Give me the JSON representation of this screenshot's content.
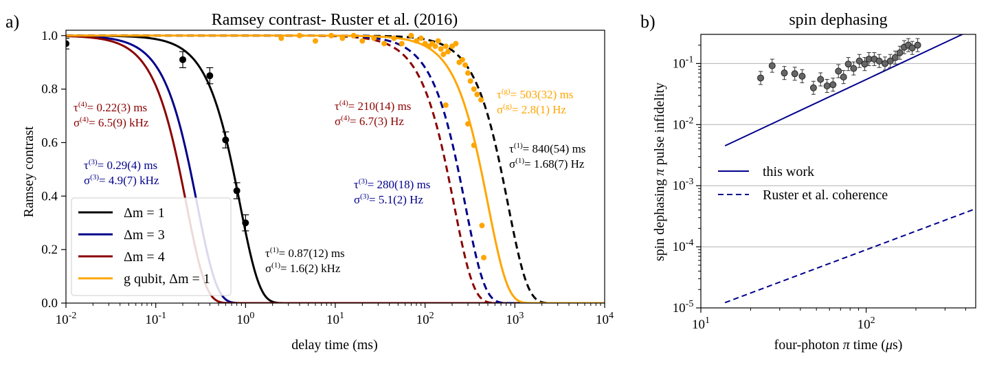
{
  "chart_data": [
    {
      "panel_label": "a)",
      "type": "line",
      "title": "Ramsey contrast- Ruster et al. (2016)",
      "xlabel": "delay time (ms)",
      "ylabel": "Ramsey contrast",
      "xscale": "log",
      "xlim": [
        0.01,
        10000
      ],
      "ylim": [
        0,
        1.02
      ],
      "xticks": [
        0.01,
        0.1,
        1,
        10,
        100,
        1000,
        10000
      ],
      "xtick_labels": [
        {
          "base": "10",
          "exp": "-2"
        },
        {
          "base": "10",
          "exp": "-1"
        },
        {
          "base": "10",
          "exp": "0"
        },
        {
          "base": "10",
          "exp": "1"
        },
        {
          "base": "10",
          "exp": "2"
        },
        {
          "base": "10",
          "exp": "3"
        },
        {
          "base": "10",
          "exp": "4"
        }
      ],
      "yticks": [
        0.0,
        0.2,
        0.4,
        0.6,
        0.8,
        1.0
      ],
      "ytick_labels": [
        "0.0",
        "0.2",
        "0.4",
        "0.6",
        "0.8",
        "1.0"
      ],
      "legend": {
        "location": "lower-left",
        "entries": [
          {
            "label": "Δm = 1",
            "color": "#000000"
          },
          {
            "label": "Δm = 3",
            "color": "#00008b"
          },
          {
            "label": "Δm = 4",
            "color": "#8b0000"
          },
          {
            "label": "g qubit, Δm = 1",
            "color": "#ffa500"
          }
        ]
      },
      "series": [
        {
          "color": "#000000",
          "style": "solid",
          "tau_ms": 0.87
        },
        {
          "color": "#00008b",
          "style": "solid",
          "tau_ms": 0.29
        },
        {
          "color": "#8b0000",
          "style": "solid",
          "tau_ms": 0.22
        },
        {
          "color": "#8b0000",
          "style": "dashed",
          "tau_ms": 210
        },
        {
          "color": "#00008b",
          "style": "dashed",
          "tau_ms": 280
        },
        {
          "color": "#000000",
          "style": "dashed",
          "tau_ms": 840
        },
        {
          "color": "#ffa500",
          "style": "solid",
          "tau_ms": 503
        }
      ],
      "scatter": [
        {
          "name": "black_points",
          "color": "#000000",
          "errorbars": true,
          "x": [
            0.01,
            0.2,
            0.4,
            0.6,
            0.8,
            1.0
          ],
          "y": [
            0.97,
            0.91,
            0.85,
            0.61,
            0.42,
            0.3
          ],
          "err": [
            0.02,
            0.03,
            0.03,
            0.03,
            0.03,
            0.03
          ]
        },
        {
          "name": "orange_points",
          "color": "#ffa500",
          "errorbars": false,
          "x": [
            2.5,
            4,
            6,
            9,
            12,
            16,
            20,
            27,
            35,
            45,
            55,
            70,
            80,
            90,
            100,
            110,
            120,
            130,
            140,
            150,
            160,
            170,
            180,
            200,
            220,
            240,
            260,
            280,
            300,
            320,
            350,
            380,
            420,
            450,
            170,
            300,
            350,
            430
          ],
          "y": [
            0.99,
            1.0,
            0.98,
            1.0,
            0.99,
            1.0,
            0.98,
            0.99,
            0.97,
            0.99,
            0.97,
            1.0,
            0.98,
            0.99,
            0.97,
            0.96,
            0.97,
            0.96,
            0.98,
            0.95,
            0.93,
            0.96,
            0.94,
            0.96,
            0.97,
            0.9,
            0.91,
            0.89,
            0.86,
            0.83,
            0.8,
            0.78,
            0.76,
            0.17,
            0.74,
            0.67,
            0.59,
            0.29
          ]
        }
      ],
      "annotations": [
        {
          "color": "#8b0000",
          "lines": [
            {
              "sym": "τ",
              "sup": "(4)",
              "rest": "= 0.22(3) ms"
            },
            {
              "sym": "σ",
              "sup": "(4)",
              "rest": "= 6.5(9) kHz"
            }
          ]
        },
        {
          "color": "#00008b",
          "lines": [
            {
              "sym": "τ",
              "sup": "(3)",
              "rest": "= 0.29(4) ms"
            },
            {
              "sym": "σ",
              "sup": "(3)",
              "rest": "= 4.9(7) kHz"
            }
          ]
        },
        {
          "color": "#000000",
          "lines": [
            {
              "sym": "τ",
              "sup": "(1)",
              "rest": "= 0.87(12) ms"
            },
            {
              "sym": "σ",
              "sup": "(1)",
              "rest": "= 1.6(2) kHz"
            }
          ]
        },
        {
          "color": "#8b0000",
          "lines": [
            {
              "sym": "τ",
              "sup": "(4)",
              "rest": "= 210(14) ms"
            },
            {
              "sym": "σ",
              "sup": "(4)",
              "rest": "= 6.7(3) Hz"
            }
          ]
        },
        {
          "color": "#00008b",
          "lines": [
            {
              "sym": "τ",
              "sup": "(3)",
              "rest": "= 280(18) ms"
            },
            {
              "sym": "σ",
              "sup": "(3)",
              "rest": "= 5.1(2) Hz"
            }
          ]
        },
        {
          "color": "#ffa500",
          "lines": [
            {
              "sym": "τ",
              "sup": "(g)",
              "rest": "= 503(32) ms"
            },
            {
              "sym": "σ",
              "sup": "(g)",
              "rest": "= 2.8(1) Hz"
            }
          ]
        },
        {
          "color": "#000000",
          "lines": [
            {
              "sym": "τ",
              "sup": "(1)",
              "rest": "= 840(54) ms"
            },
            {
              "sym": "σ",
              "sup": "(1)",
              "rest": "= 1.68(7) Hz"
            }
          ]
        }
      ]
    },
    {
      "panel_label": "b)",
      "type": "line",
      "title": "spin dephasing",
      "xlabel_parts": {
        "pre": "four-photon ",
        "pi": "π",
        "mid": " time (",
        "mu": "μ",
        "post": "s)"
      },
      "ylabel_parts": {
        "pre": "spin dephasing ",
        "pi": "π",
        "post": " pulse infidelity"
      },
      "xscale": "log",
      "yscale": "log",
      "xlim": [
        10,
        460
      ],
      "ylim": [
        1e-05,
        0.3
      ],
      "xticks": [
        10,
        100
      ],
      "xtick_labels": [
        {
          "base": "10",
          "exp": "1"
        },
        {
          "base": "10",
          "exp": "2"
        }
      ],
      "yticks": [
        1e-05,
        0.0001,
        0.001,
        0.01,
        0.1
      ],
      "ytick_labels": [
        {
          "base": "10",
          "exp": "-5"
        },
        {
          "base": "10",
          "exp": "-4"
        },
        {
          "base": "10",
          "exp": "-3"
        },
        {
          "base": "10",
          "exp": "-2"
        },
        {
          "base": "10",
          "exp": "-1"
        }
      ],
      "grid": "horizontal",
      "legend": {
        "location": "center-left",
        "entries": [
          {
            "label": "this work",
            "color": "#00008b",
            "style": "solid"
          },
          {
            "label": "Ruster et al. coherence",
            "color": "#00008b",
            "style": "dashed"
          }
        ]
      },
      "series": [
        {
          "label": "this work",
          "color": "#00008b",
          "style": "solid",
          "x": [
            14,
            460
          ],
          "y": [
            0.0045,
            0.38
          ]
        },
        {
          "label": "Ruster et al. coherence",
          "color": "#00008b",
          "style": "dashed",
          "x": [
            14,
            460
          ],
          "y": [
            1.22e-05,
            0.00042
          ]
        }
      ],
      "scatter": {
        "color": "#666666",
        "errorbars": true,
        "x": [
          23,
          27,
          32,
          37,
          41,
          48,
          53,
          58,
          63,
          68,
          73,
          78,
          84,
          91,
          98,
          104,
          112,
          120,
          130,
          140,
          150,
          160,
          170,
          180,
          190,
          205
        ],
        "y": [
          0.058,
          0.092,
          0.07,
          0.068,
          0.062,
          0.04,
          0.055,
          0.043,
          0.045,
          0.075,
          0.06,
          0.098,
          0.083,
          0.11,
          0.098,
          0.118,
          0.118,
          0.11,
          0.1,
          0.11,
          0.125,
          0.15,
          0.185,
          0.2,
          0.18,
          0.2
        ]
      }
    }
  ]
}
